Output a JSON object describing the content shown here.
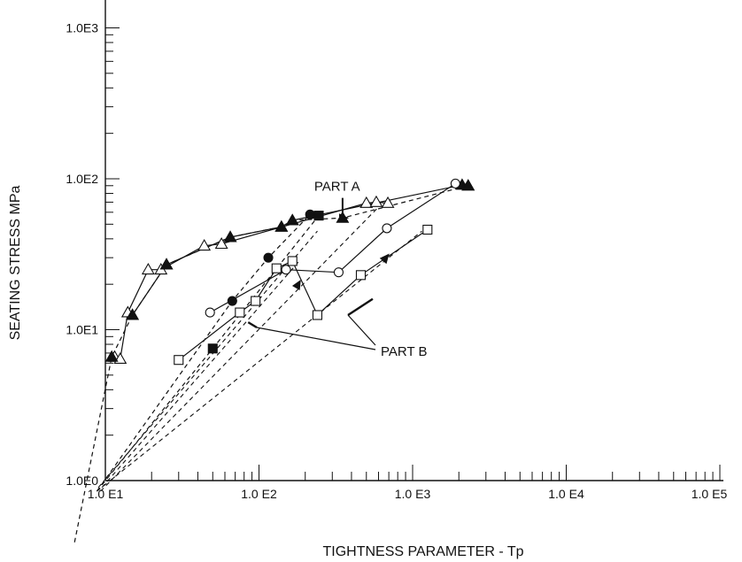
{
  "chart_data": {
    "type": "scatter",
    "title": "",
    "xlabel": "TIGHTNESS PARAMETER - Tp",
    "ylabel": "SEATING STRESS MPa",
    "xscale": "log",
    "yscale": "log",
    "xlim": [
      10,
      100000
    ],
    "ylim": [
      1,
      1000
    ],
    "x_tick_labels": [
      "1.0 E1",
      "1.0 E2",
      "1.0 E3",
      "1.0 E4",
      "1.0 E5"
    ],
    "y_tick_labels": [
      "1.0E0",
      "1.0E1",
      "1.0E2",
      "1.0E3"
    ],
    "grid": false,
    "annotations": [
      {
        "text": "PART A",
        "target": [
          350,
          57
        ]
      },
      {
        "text": "PART B",
        "targets": [
          [
            85,
            11.2
          ],
          [
            550,
            16
          ]
        ]
      }
    ],
    "series": [
      {
        "marker": "open-triangle",
        "line": "solid",
        "group": "PART A",
        "points": [
          [
            11.5,
            6.6
          ],
          [
            12.5,
            6.4
          ],
          [
            14,
            13
          ],
          [
            19,
            25
          ],
          [
            23,
            25
          ],
          [
            44,
            36
          ],
          [
            57,
            37
          ],
          [
            500,
            69
          ],
          [
            580,
            70
          ],
          [
            690,
            69
          ]
        ]
      },
      {
        "marker": "filled-triangle",
        "line": "solid",
        "group": "PART A",
        "points": [
          [
            15,
            12.5
          ],
          [
            25,
            27
          ],
          [
            65,
            41
          ],
          [
            140,
            48
          ],
          [
            165,
            53
          ],
          [
            2100,
            91
          ],
          [
            2300,
            90
          ]
        ]
      },
      {
        "marker": "filled-triangle",
        "line": "dashed",
        "group": "PART A",
        "points": [
          [
            11,
            6.6
          ],
          [
            15,
            12.5
          ],
          [
            25,
            27
          ],
          [
            65,
            41
          ],
          [
            140,
            48
          ],
          [
            165,
            53
          ],
          [
            350,
            55
          ],
          [
            2300,
            90
          ]
        ]
      },
      {
        "marker": "open-circle",
        "line": "solid",
        "group": "PART B",
        "points": [
          [
            48,
            13
          ],
          [
            150,
            25
          ],
          [
            330,
            24
          ],
          [
            680,
            47
          ],
          [
            1900,
            93
          ]
        ]
      },
      {
        "marker": "filled-circle",
        "line": "dashed",
        "group": "PART B",
        "points": [
          [
            67,
            15.5
          ],
          [
            115,
            30
          ],
          [
            215,
            58
          ]
        ]
      },
      {
        "marker": "open-square",
        "line": "solid",
        "group": "PART B",
        "points": [
          [
            30,
            6.3
          ],
          [
            75,
            13
          ],
          [
            95,
            15.5
          ],
          [
            130,
            25.5
          ],
          [
            165,
            28.5
          ],
          [
            240,
            12.5
          ],
          [
            460,
            23
          ],
          [
            1250,
            46
          ]
        ]
      },
      {
        "marker": "filled-square",
        "line": "dashed",
        "group": "PART B",
        "points": [
          [
            50,
            7.5
          ],
          [
            245,
            57
          ]
        ]
      }
    ]
  }
}
